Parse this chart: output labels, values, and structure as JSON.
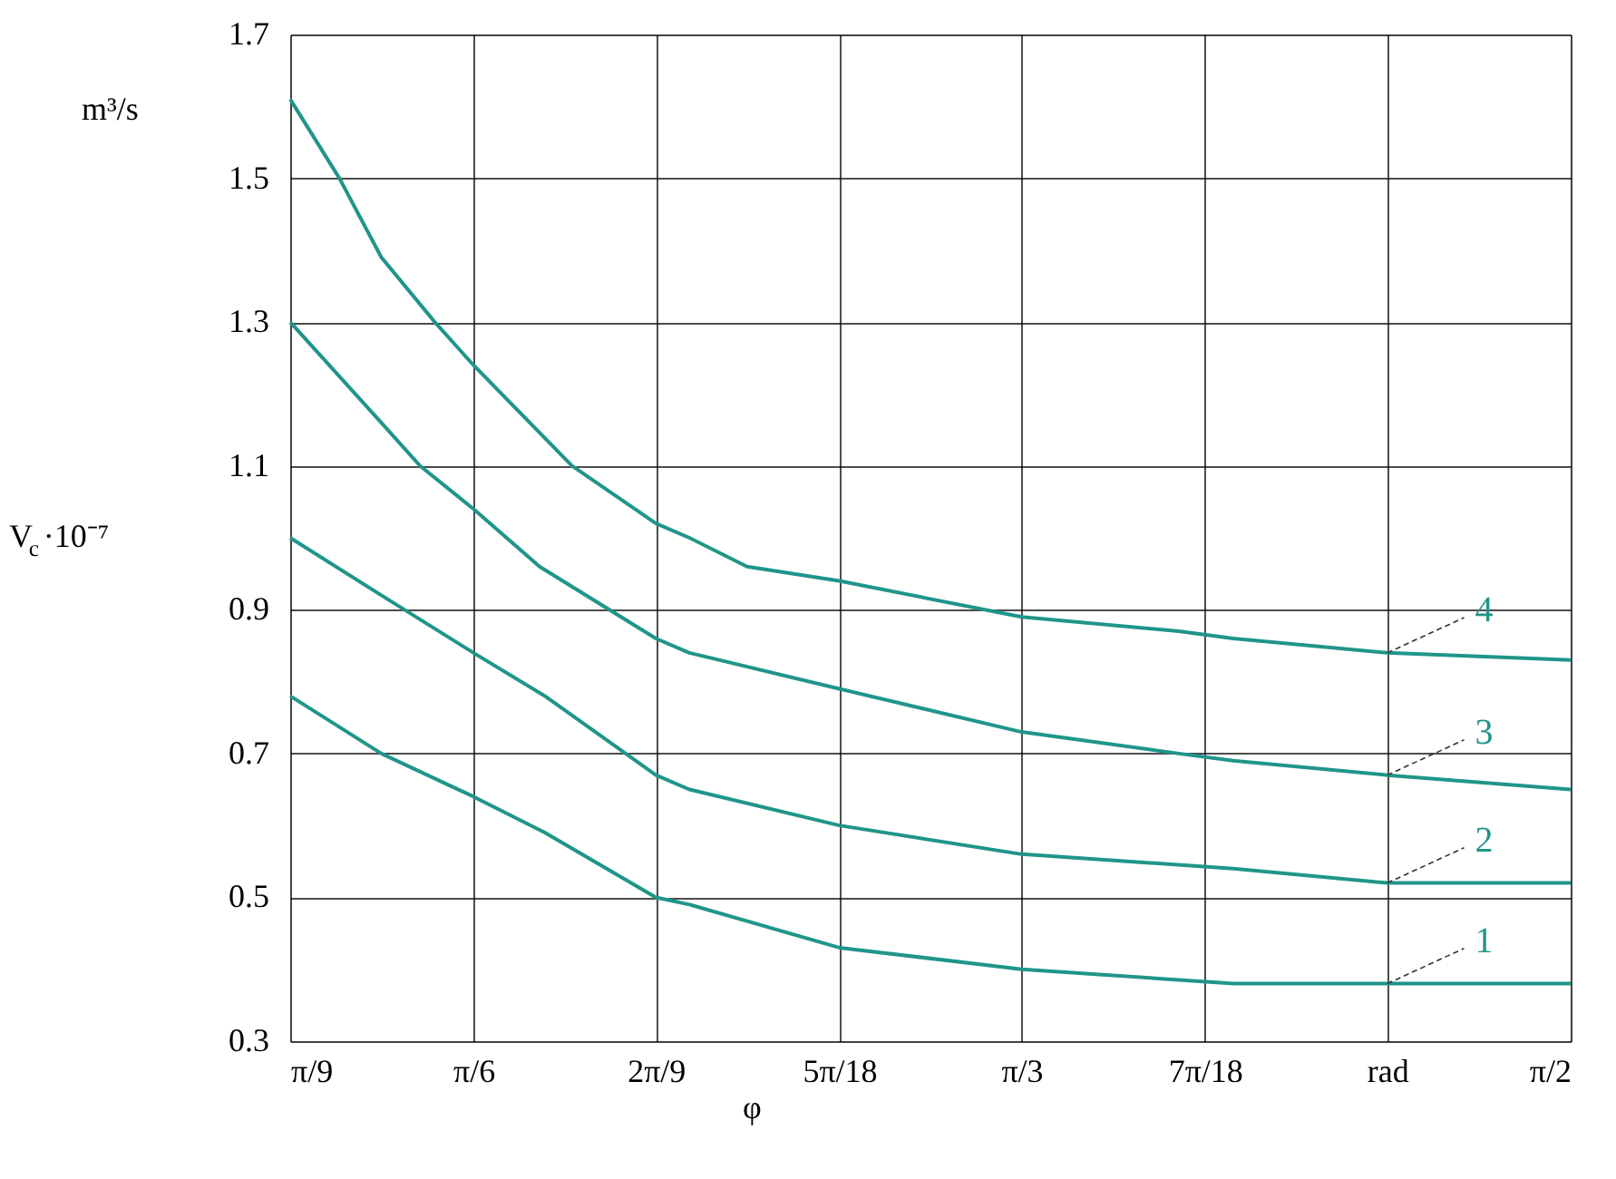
{
  "chart_data": {
    "type": "line",
    "xlabel": "φ",
    "ylabel": "V$_{c}$·10⁻⁷",
    "annotations": [
      "m³/s"
    ],
    "xlim": [
      0.349,
      1.571
    ],
    "ylim": [
      0.3,
      1.7
    ],
    "xticks": [
      {
        "value": 0.349,
        "label": "π/9"
      },
      {
        "value": 0.524,
        "label": "π/6"
      },
      {
        "value": 0.698,
        "label": "2π/9"
      },
      {
        "value": 0.873,
        "label": "5π/18"
      },
      {
        "value": 1.047,
        "label": "π/3"
      },
      {
        "value": 1.222,
        "label": "7π/18"
      },
      {
        "value": 1.396,
        "label": "rad"
      },
      {
        "value": 1.571,
        "label": "π/2"
      }
    ],
    "yticks": [
      0.3,
      0.5,
      0.7,
      0.9,
      1.1,
      1.3,
      1.5,
      1.7
    ],
    "grid": true,
    "line_style": "solid",
    "series": [
      {
        "name": "1",
        "color": "#20958a",
        "x": [
          0.349,
          0.436,
          0.524,
          0.592,
          0.698,
          0.73,
          0.873,
          1.047,
          1.249,
          1.396,
          1.571
        ],
        "values": [
          0.78,
          0.7,
          0.64,
          0.59,
          0.5,
          0.49,
          0.43,
          0.4,
          0.38,
          0.38,
          0.38
        ]
      },
      {
        "name": "2",
        "color": "#20958a",
        "x": [
          0.349,
          0.436,
          0.524,
          0.592,
          0.698,
          0.73,
          0.873,
          1.047,
          1.249,
          1.396,
          1.571
        ],
        "values": [
          1.0,
          0.92,
          0.84,
          0.78,
          0.67,
          0.65,
          0.6,
          0.56,
          0.54,
          0.52,
          0.52
        ]
      },
      {
        "name": "3",
        "color": "#20958a",
        "x": [
          0.349,
          0.436,
          0.473,
          0.524,
          0.587,
          0.698,
          0.73,
          0.873,
          1.047,
          1.197,
          1.249,
          1.396,
          1.571
        ],
        "values": [
          1.3,
          1.16,
          1.1,
          1.04,
          0.96,
          0.86,
          0.84,
          0.79,
          0.73,
          0.7,
          0.69,
          0.67,
          0.65
        ]
      },
      {
        "name": "4",
        "color": "#20958a",
        "x": [
          0.349,
          0.396,
          0.436,
          0.487,
          0.524,
          0.618,
          0.698,
          0.73,
          0.785,
          0.873,
          1.047,
          1.197,
          1.249,
          1.396,
          1.571
        ],
        "values": [
          1.61,
          1.5,
          1.39,
          1.3,
          1.24,
          1.1,
          1.02,
          1.0,
          0.96,
          0.94,
          0.89,
          0.87,
          0.86,
          0.84,
          0.83
        ]
      }
    ]
  }
}
